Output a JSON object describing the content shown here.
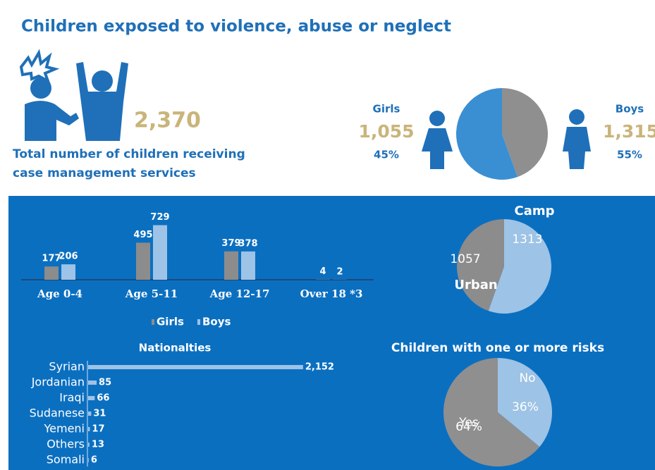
{
  "title": "Children exposed to violence, abuse or neglect",
  "total": {
    "value": "2,370",
    "lines": [
      "Total number of children receiving",
      "case management services"
    ]
  },
  "chart_data": [
    {
      "type": "pie",
      "categories": [
        "Girls",
        "Boys"
      ],
      "values": [
        1055,
        1315
      ],
      "value_labels": [
        "1,055",
        "1,315"
      ],
      "percent_labels": [
        "45%",
        "55%"
      ],
      "colors": [
        "#8f8f8f",
        "#3a8fd3"
      ]
    },
    {
      "type": "bar",
      "categories": [
        "Age 0-4",
        "Age 5-11",
        "Age 12-17",
        "Over 18 *3"
      ],
      "ylim": [
        0,
        800
      ],
      "series": [
        {
          "name": "Girls",
          "color": "#8c8c8c",
          "values": [
            177,
            495,
            379,
            4
          ]
        },
        {
          "name": "Boys",
          "color": "#9dc3e6",
          "values": [
            206,
            729,
            378,
            2
          ]
        }
      ]
    },
    {
      "type": "pie",
      "categories": [
        "Camp",
        "Urban"
      ],
      "values": [
        1313,
        1057
      ],
      "colors": [
        "#9dc3e6",
        "#8c8c8c"
      ]
    },
    {
      "type": "hbar",
      "title": "Nationalties",
      "categories": [
        "Syrian",
        "Jordanian",
        "Iraqi",
        "Sudanese",
        "Yemeni",
        "Others",
        "Somali"
      ],
      "values": [
        2152,
        85,
        66,
        31,
        17,
        13,
        6
      ],
      "value_labels": [
        "2,152",
        "85",
        "66",
        "31",
        "17",
        "13",
        "6"
      ],
      "xlim": [
        0,
        2400
      ],
      "color": "#9dc3e6"
    },
    {
      "type": "pie",
      "title": "Children with one or more risks",
      "categories": [
        "No",
        "Yes"
      ],
      "values": [
        36,
        64
      ],
      "value_labels": [
        "36%",
        "64%"
      ],
      "colors": [
        "#9dc3e6",
        "#8f8f8f"
      ]
    }
  ]
}
